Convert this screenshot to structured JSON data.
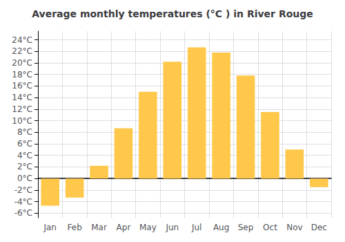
{
  "chart_data": {
    "type": "bar",
    "title": "Average monthly temperatures (°C ) in River Rouge",
    "categories": [
      "Jan",
      "Feb",
      "Mar",
      "Apr",
      "May",
      "Jun",
      "Jul",
      "Aug",
      "Sep",
      "Oct",
      "Nov",
      "Dec"
    ],
    "values": [
      -4.7,
      -3.3,
      2.2,
      8.7,
      15.0,
      20.2,
      22.7,
      21.8,
      17.8,
      11.5,
      5.0,
      -1.5
    ],
    "color": "#FFC84A",
    "ylim": [
      -6.8,
      25.5
    ],
    "yticks": [
      {
        "value": -6,
        "label": "-6°C"
      },
      {
        "value": -4,
        "label": "-4°C"
      },
      {
        "value": -2,
        "label": "-2°C"
      },
      {
        "value": 0,
        "label": "0°C"
      },
      {
        "value": 2,
        "label": "2°C"
      },
      {
        "value": 4,
        "label": "4°C"
      },
      {
        "value": 6,
        "label": "6°C"
      },
      {
        "value": 8,
        "label": "8°C"
      },
      {
        "value": 10,
        "label": "10°C"
      },
      {
        "value": 12,
        "label": "12°C"
      },
      {
        "value": 14,
        "label": "14°C"
      },
      {
        "value": 16,
        "label": "16°C"
      },
      {
        "value": 18,
        "label": "18°C"
      },
      {
        "value": 20,
        "label": "20°C"
      },
      {
        "value": 22,
        "label": "22°C"
      },
      {
        "value": 24,
        "label": "24°C"
      }
    ],
    "grid": true
  }
}
